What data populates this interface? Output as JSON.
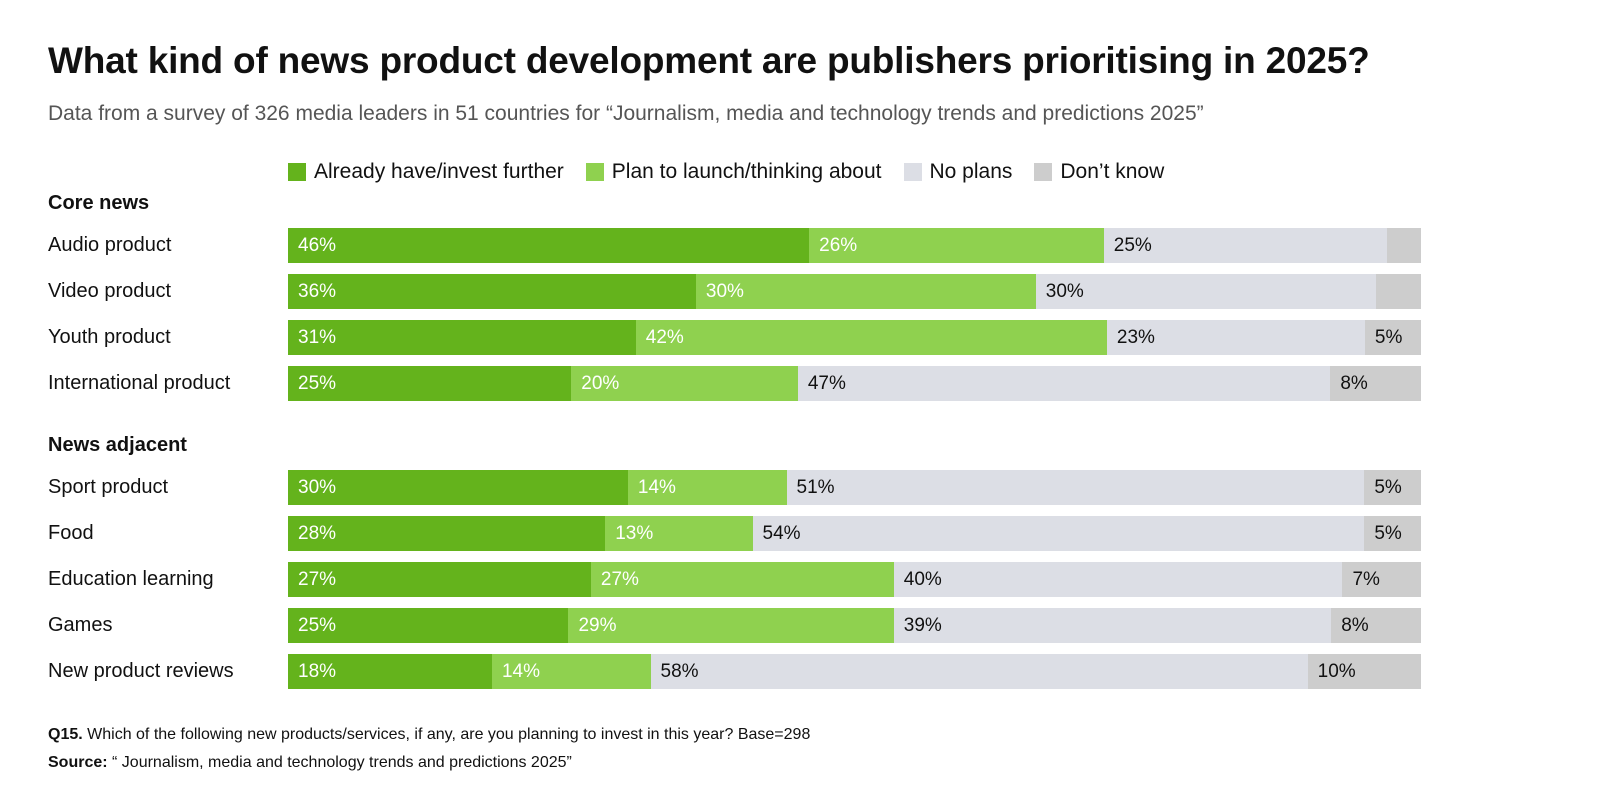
{
  "chart_data": {
    "type": "bar",
    "orientation": "horizontal",
    "stacked": true,
    "title": "What kind of news product development are publishers prioritising in 2025?",
    "subtitle": "Data from a survey of 326 media leaders in 51 countries for “Journalism, media and technology trends and predictions 2025”",
    "legend": {
      "placement": "top",
      "entries": [
        {
          "name": "Already have/invest further",
          "color": "#64b31c"
        },
        {
          "name": "Plan to launch/thinking about",
          "color": "#8fd14f"
        },
        {
          "name": "No plans",
          "color": "#dcdee5"
        },
        {
          "name": "Don’t know",
          "color": "#cdcdcd"
        }
      ]
    },
    "groups": [
      {
        "name": "Core news",
        "categories": [
          {
            "label": "Audio product",
            "values": [
              46,
              26,
              25,
              3
            ],
            "labels": [
              "46%",
              "26%",
              "25%",
              ""
            ]
          },
          {
            "label": "Video product",
            "values": [
              36,
              30,
              30,
              4
            ],
            "labels": [
              "36%",
              "30%",
              "30%",
              ""
            ]
          },
          {
            "label": "Youth product",
            "values": [
              31,
              42,
              23,
              5
            ],
            "labels": [
              "31%",
              "42%",
              "23%",
              "5%"
            ]
          },
          {
            "label": "International product",
            "values": [
              25,
              20,
              47,
              8
            ],
            "labels": [
              "25%",
              "20%",
              "47%",
              "8%"
            ]
          }
        ]
      },
      {
        "name": "News adjacent",
        "categories": [
          {
            "label": "Sport product",
            "values": [
              30,
              14,
              51,
              5
            ],
            "labels": [
              "30%",
              "14%",
              "51%",
              "5%"
            ]
          },
          {
            "label": "Food",
            "values": [
              28,
              13,
              54,
              5
            ],
            "labels": [
              "28%",
              "13%",
              "54%",
              "5%"
            ]
          },
          {
            "label": "Education learning",
            "values": [
              27,
              27,
              40,
              7
            ],
            "labels": [
              "27%",
              "27%",
              "40%",
              "7%"
            ]
          },
          {
            "label": "Games",
            "values": [
              25,
              29,
              39,
              8
            ],
            "labels": [
              "25%",
              "29%",
              "39%",
              "8%"
            ]
          },
          {
            "label": "New product reviews",
            "values": [
              18,
              14,
              58,
              10
            ],
            "labels": [
              "18%",
              "14%",
              "58%",
              "10%"
            ]
          }
        ]
      }
    ],
    "unit": "%"
  },
  "footer": {
    "question_label": "Q15.",
    "question": " Which of the following new products/services, if any, are you planning to invest in this year? Base=298",
    "source_label": "Source:",
    "source": " “ Journalism, media and technology trends and predictions 2025”"
  }
}
